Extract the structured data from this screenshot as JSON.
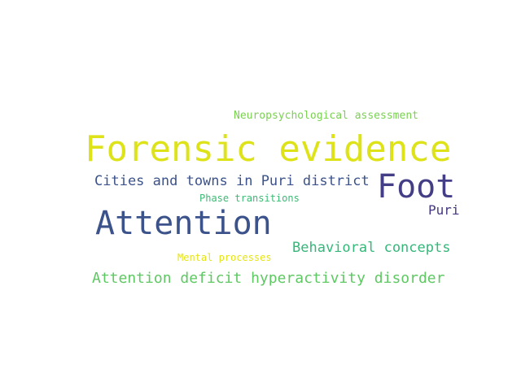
{
  "words": [
    {
      "text": "Neuropsychological assessment",
      "color": "#7ad151"
    },
    {
      "text": "Forensic evidence",
      "color": "#dde318"
    },
    {
      "text": "Cities and towns in Puri district",
      "color": "#3b528b"
    },
    {
      "text": "Foot",
      "color": "#433e85"
    },
    {
      "text": "Phase transitions",
      "color": "#3bbb75"
    },
    {
      "text": "Puri",
      "color": "#453781"
    },
    {
      "text": "Attention",
      "color": "#3b528b"
    },
    {
      "text": "Behavioral concepts",
      "color": "#35b779"
    },
    {
      "text": "Mental processes",
      "color": "#e5e419"
    },
    {
      "text": "Attention deficit hyperactivity disorder",
      "color": "#5ec962"
    }
  ]
}
